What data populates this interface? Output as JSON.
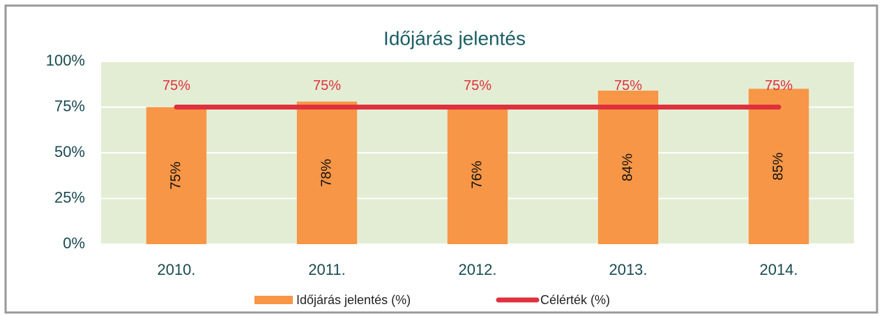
{
  "chart_data": {
    "type": "bar",
    "title": "Időjárás jelentés",
    "categories": [
      "2010.",
      "2011.",
      "2012.",
      "2013.",
      "2014."
    ],
    "series": [
      {
        "name": "Időjárás jelentés (%)",
        "type": "bar",
        "color": "#f79646",
        "values": [
          75,
          78,
          76,
          84,
          85
        ],
        "value_labels": [
          "75%",
          "78%",
          "76%",
          "84%",
          "85%"
        ]
      },
      {
        "name": "Célérték (%)",
        "type": "line",
        "color": "#e0303e",
        "values": [
          75,
          75,
          75,
          75,
          75
        ],
        "value_labels": [
          "75%",
          "75%",
          "75%",
          "75%",
          "75%"
        ]
      }
    ],
    "ylim": [
      0,
      100
    ],
    "yticks": [
      {
        "value": 0,
        "label": "0%"
      },
      {
        "value": 25,
        "label": "25%"
      },
      {
        "value": 50,
        "label": "50%"
      },
      {
        "value": 75,
        "label": "75%"
      },
      {
        "value": 100,
        "label": "100%"
      }
    ],
    "grid": true,
    "legend": "bottom"
  }
}
